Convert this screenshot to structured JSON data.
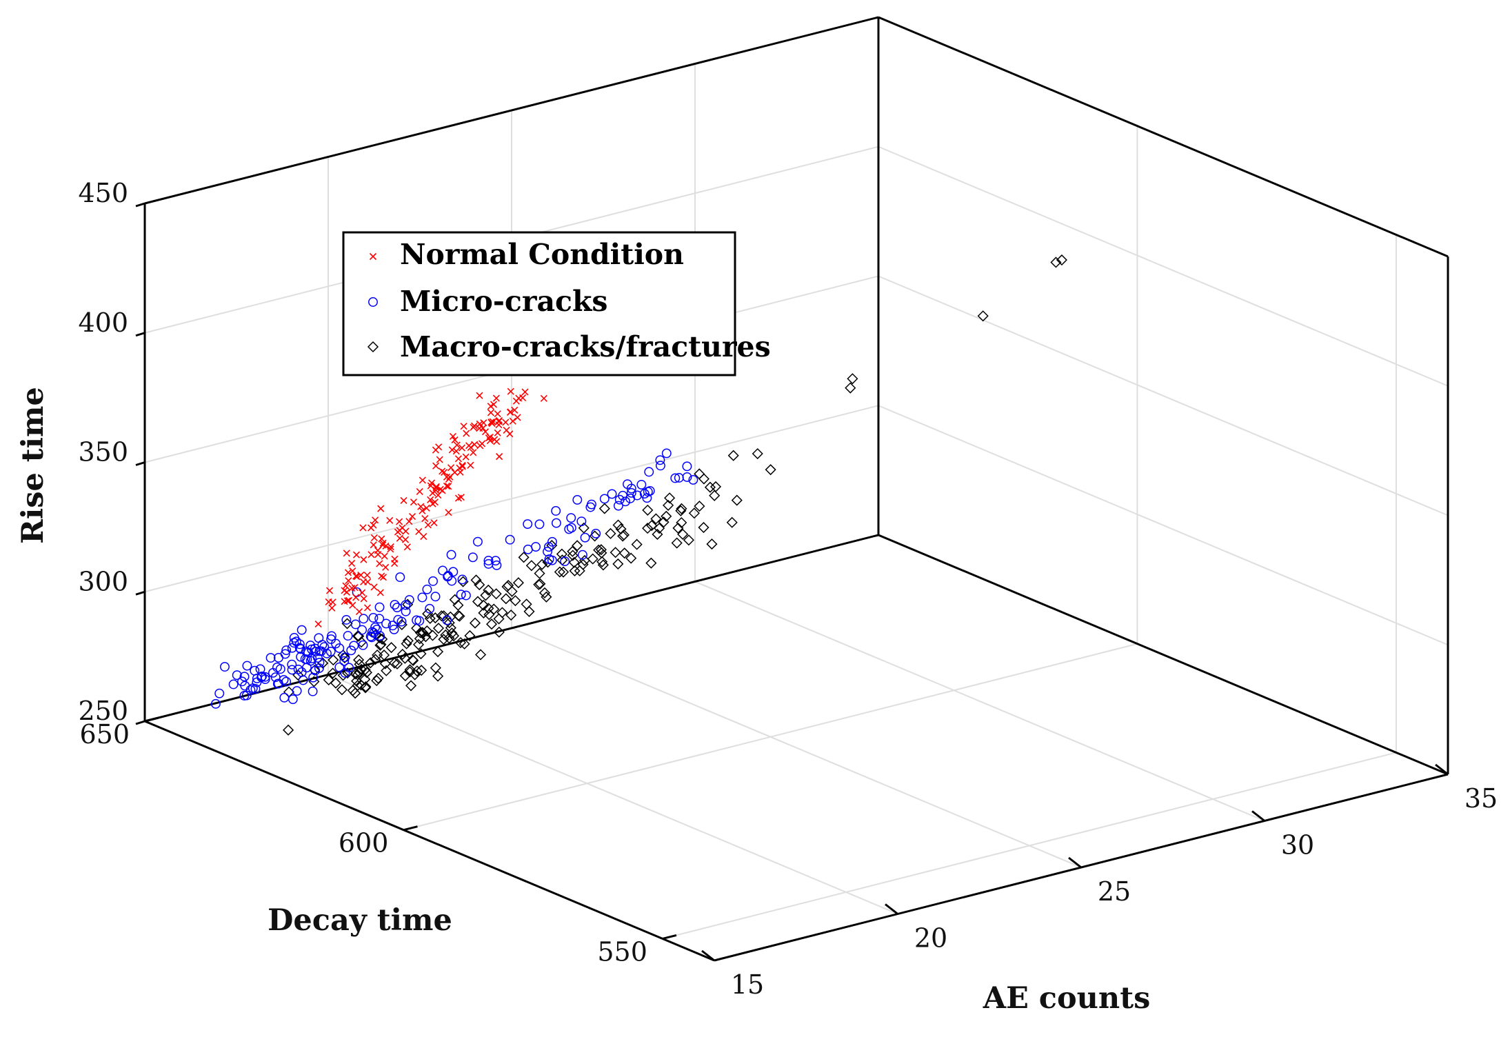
{
  "chart_data": {
    "type": "scatter",
    "projection": "3d",
    "x_label": "AE counts",
    "y_label": "Decay time",
    "z_label": "Rise time",
    "x_range": [
      15,
      35
    ],
    "y_range": [
      540,
      650
    ],
    "z_range": [
      250,
      450
    ],
    "x_ticks": [
      "15",
      "20",
      "25",
      "30",
      "35"
    ],
    "y_ticks": [
      "550",
      "600",
      "650"
    ],
    "z_ticks": [
      "250",
      "300",
      "350",
      "400",
      "450"
    ],
    "grid": true,
    "legend_position": "upper-left",
    "series": [
      {
        "name": "Normal Condition",
        "marker": "x",
        "color": "#ff0000",
        "count": 170,
        "points": [
          [
            20.0,
            646,
            282
          ],
          [
            20.5,
            646,
            290
          ],
          [
            21.0,
            645,
            300
          ],
          [
            21.5,
            645,
            308
          ],
          [
            22.0,
            644,
            318
          ],
          [
            22.5,
            644,
            326
          ],
          [
            23.0,
            643,
            334
          ],
          [
            23.5,
            643,
            341
          ],
          [
            24.0,
            642,
            348
          ]
        ]
      },
      {
        "name": "Micro-cracks",
        "marker": "o",
        "color": "#0000ff",
        "count": 185,
        "points": [
          [
            18.0,
            648,
            258
          ],
          [
            19.0,
            647,
            262
          ],
          [
            20.5,
            647,
            268
          ],
          [
            22.0,
            646,
            276
          ],
          [
            24.0,
            646,
            283
          ],
          [
            26.0,
            646,
            288
          ],
          [
            28.0,
            647,
            293
          ],
          [
            29.5,
            648,
            298
          ]
        ]
      },
      {
        "name": "Macro-cracks/fractures",
        "marker": "diamond",
        "color": "#000000",
        "count": 205,
        "points": [
          [
            20.0,
            644,
            256
          ],
          [
            22.0,
            644,
            263
          ],
          [
            24.0,
            644,
            270
          ],
          [
            26.0,
            645,
            276
          ],
          [
            28.0,
            645,
            282
          ],
          [
            30.0,
            646,
            290
          ],
          [
            17.5,
            640,
            246
          ],
          [
            30.2,
            644,
            303
          ],
          [
            31.0,
            645,
            300
          ],
          [
            30.0,
            620,
            350
          ],
          [
            30.2,
            621,
            352
          ],
          [
            31.5,
            605,
            385
          ],
          [
            32.5,
            598,
            408
          ],
          [
            32.8,
            599,
            407
          ]
        ]
      }
    ]
  }
}
